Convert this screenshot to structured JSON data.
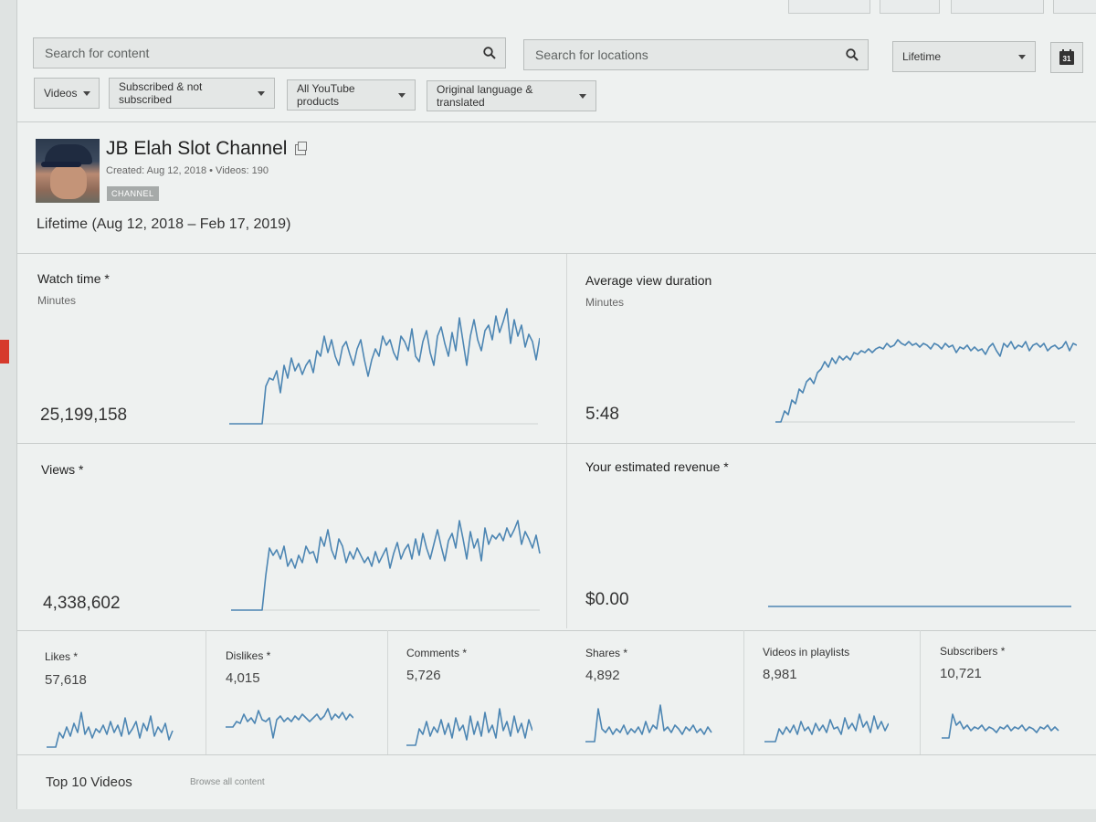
{
  "filters": {
    "search_content_placeholder": "Search for content",
    "search_locations_placeholder": "Search for locations",
    "period": "Lifetime",
    "calendar_day": "31",
    "dropdowns": [
      "Videos",
      "Subscribed & not subscribed",
      "All YouTube products",
      "Original language & translated"
    ]
  },
  "channel": {
    "name": "JB Elah Slot Channel",
    "meta": "Created: Aug 12, 2018  •  Videos: 190",
    "badge": "CHANNEL",
    "range": "Lifetime (Aug 12, 2018 – Feb 17, 2019)"
  },
  "metrics": {
    "watch_time": {
      "title": "Watch time *",
      "unit": "Minutes",
      "value": "25,199,158"
    },
    "avg_view_duration": {
      "title": "Average view duration",
      "unit": "Minutes",
      "value": "5:48"
    },
    "views": {
      "title": "Views *",
      "value": "4,338,602"
    },
    "revenue": {
      "title": "Your estimated revenue *",
      "value": "$0.00"
    }
  },
  "small_metrics": [
    {
      "title": "Likes *",
      "value": "57,618"
    },
    {
      "title": "Dislikes *",
      "value": "4,015"
    },
    {
      "title": "Comments *",
      "value": "5,726"
    },
    {
      "title": "Shares *",
      "value": "4,892"
    },
    {
      "title": "Videos in playlists",
      "value": "8,981"
    },
    {
      "title": "Subscribers *",
      "value": "10,721"
    }
  ],
  "top_videos": {
    "title": "Top 10 Videos",
    "link": "Browse all content"
  },
  "accent_color": "#4d86b3"
}
